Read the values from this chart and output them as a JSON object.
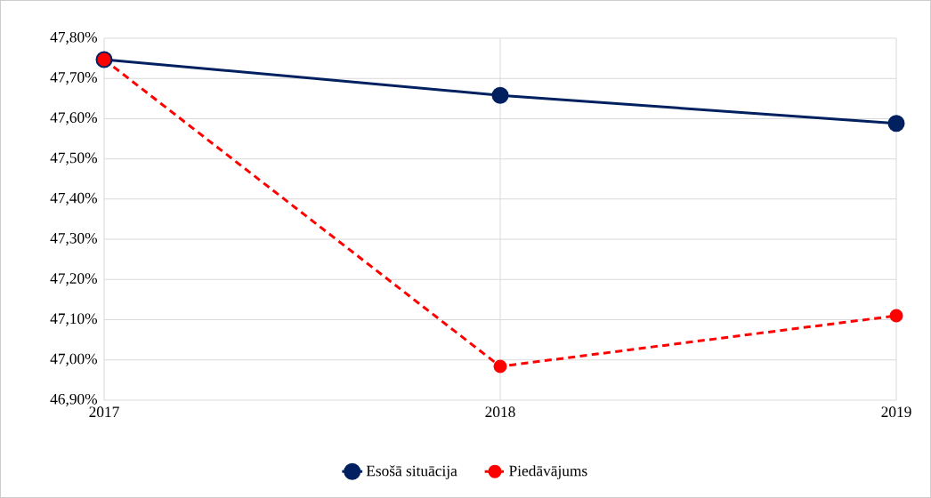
{
  "chart_data": {
    "type": "line",
    "x": [
      2017,
      2018,
      2019
    ],
    "series": [
      {
        "name": "Esošā situācija",
        "color": "#002060",
        "values": [
          47.747,
          47.658,
          47.588
        ],
        "line_style": "solid"
      },
      {
        "name": "Piedāvājums",
        "color": "#ff0000",
        "values": [
          47.747,
          46.984,
          47.11
        ],
        "line_style": "dashed"
      }
    ],
    "xlim": [
      2017,
      2019
    ],
    "xticks": [
      2017,
      2018,
      2019
    ],
    "ylim": [
      46.9,
      47.8
    ],
    "yticks": [
      {
        "value": 46.9,
        "label": "46,90%"
      },
      {
        "value": 47.0,
        "label": "47,00%"
      },
      {
        "value": 47.1,
        "label": "47,10%"
      },
      {
        "value": 47.2,
        "label": "47,20%"
      },
      {
        "value": 47.3,
        "label": "47,30%"
      },
      {
        "value": 47.4,
        "label": "47,40%"
      },
      {
        "value": 47.5,
        "label": "47,50%"
      },
      {
        "value": 47.6,
        "label": "47,60%"
      },
      {
        "value": 47.7,
        "label": "47,70%"
      },
      {
        "value": 47.8,
        "label": "47,80%"
      }
    ],
    "grid": true,
    "legend": "bottom",
    "marker": "circle"
  }
}
